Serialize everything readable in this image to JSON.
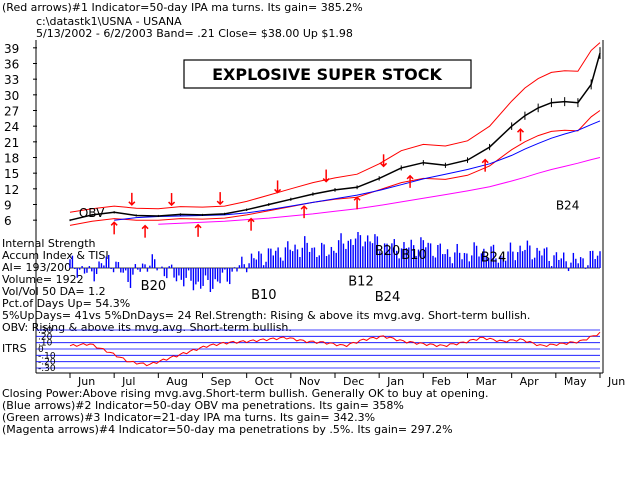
{
  "header": {
    "line1": "(Red arrows)#1 Indicator=50-day IPA ma turns. Its gain= 385.2%",
    "path": "c:\\datastk1\\USNA  -  USANA",
    "info": "5/13/2002 - 6/2/2003  Band= .21   Close= $38.00   Up $1.98"
  },
  "annotation": {
    "title": "EXPLOSIVE SUPER STOCK"
  },
  "left_panel": {
    "lines": [
      "Internal Strength",
      "Accum Index & TISI",
      "AI= 193/200",
      "Volume= 1922",
      "Vol/Vol 50 DA= 1.2",
      "Pct.of Days Up= 54.3%",
      "5%UpDays= 41vs 5%DnDays= 24   Rel.Strength: Rising & above its mvg.avg. Short-term bullish.",
      "OBV: Rising & above its mvg.avg. Short-term bullish."
    ],
    "itrs_label": "ITRS",
    "itrs_ticks": [
      ".30",
      ".20",
      ".10",
      "0",
      "-.10",
      "-.20",
      "-.30"
    ]
  },
  "footer": {
    "lines": [
      "Closing Power:Above rising mvg.avg.Short-term bullish. Generally OK to buy at opening.",
      "(Blue arrows)#2 Indicator=50-day OBV ma penetrations. Its gain= 358%",
      "(Green arrows)#3 Indicator=21-day IPA ma turns. Its gain= 342.3%",
      "(Magenta arrows)#4 Indicator=50-day ma penetrations by .5%. Its gain= 297.2%"
    ]
  },
  "colors": {
    "price": "#000000",
    "bands": "#ff0000",
    "ma_blue": "#0000ff",
    "ma_magenta": "#ff00ff",
    "accum": "#0000ff",
    "itrs": "#ff0000",
    "arrows": "#ff0000"
  },
  "chart_data": {
    "type": "line",
    "title": "USNA - USANA",
    "y_ticks": [
      39,
      36,
      33,
      30,
      27,
      24,
      21,
      18,
      15,
      12,
      9,
      6
    ],
    "ylim": [
      4.5,
      40.5
    ],
    "x_months": [
      "Jun",
      "Jul",
      "Aug",
      "Sep",
      "Oct",
      "Nov",
      "Dec",
      "Jan",
      "Feb",
      "Mar",
      "Apr",
      "May",
      "Jun"
    ],
    "x": [
      0,
      0.5,
      1,
      1.5,
      2,
      2.5,
      3,
      3.5,
      4,
      4.5,
      5,
      5.5,
      6,
      6.5,
      7,
      7.5,
      8,
      8.5,
      9,
      9.5,
      10,
      10.3,
      10.6,
      10.9,
      11.2,
      11.5,
      11.8,
      12
    ],
    "series": [
      {
        "values": [
          6.0,
          7.0,
          7.5,
          6.9,
          6.8,
          7.1,
          7.0,
          7.2,
          8.0,
          9.0,
          10.0,
          11.0,
          11.8,
          12.3,
          14.0,
          16.0,
          17.0,
          16.5,
          17.5,
          20.0,
          24.0,
          26.0,
          27.5,
          28.5,
          28.7,
          28.5,
          32.0,
          38.0
        ]
      },
      {
        "values": [
          7.5,
          8.2,
          8.7,
          8.3,
          8.2,
          8.6,
          8.5,
          8.7,
          9.6,
          10.8,
          12.0,
          13.2,
          14.1,
          14.8,
          16.8,
          19.3,
          20.5,
          20.2,
          21.2,
          24.0,
          28.8,
          31.3,
          33.1,
          34.3,
          34.6,
          34.5,
          38.5,
          40.0
        ]
      },
      {
        "values": [
          5.0,
          5.8,
          6.3,
          6.0,
          6.0,
          6.3,
          6.2,
          6.4,
          7.0,
          7.8,
          8.6,
          9.4,
          10.0,
          10.4,
          11.8,
          13.2,
          14.0,
          13.8,
          14.6,
          16.4,
          19.5,
          21.0,
          22.2,
          23.0,
          23.2,
          23.1,
          25.8,
          27.0
        ]
      },
      {
        "values": [
          null,
          null,
          6.0,
          6.5,
          6.7,
          6.8,
          6.9,
          7.0,
          7.4,
          8.0,
          8.7,
          9.4,
          10.1,
          10.8,
          11.7,
          12.8,
          13.9,
          14.8,
          15.7,
          16.8,
          18.4,
          19.6,
          20.7,
          21.7,
          22.5,
          23.2,
          24.3,
          25.0
        ]
      },
      {
        "values": [
          null,
          null,
          null,
          null,
          5.2,
          5.4,
          5.6,
          5.8,
          6.1,
          6.4,
          6.8,
          7.2,
          7.7,
          8.2,
          8.8,
          9.5,
          10.2,
          10.9,
          11.6,
          12.4,
          13.5,
          14.2,
          15.0,
          15.7,
          16.3,
          16.9,
          17.6,
          18.0
        ]
      }
    ],
    "accum_index": [
      2,
      -3,
      4,
      -5,
      3,
      -2,
      -6,
      -8,
      -4,
      3,
      6,
      8,
      10,
      7,
      12,
      14,
      10,
      9,
      11,
      7,
      6,
      8,
      5,
      9,
      7,
      4,
      3,
      6
    ],
    "itrs": [
      0.05,
      0.08,
      -0.05,
      -0.2,
      -0.25,
      -0.15,
      -0.05,
      0.05,
      0.1,
      0.12,
      0.15,
      0.18,
      0.12,
      0.1,
      0.05,
      0.15,
      0.2,
      0.12,
      0.08,
      0.05,
      0.1,
      0.18,
      0.12,
      0.15,
      0.05,
      0.08,
      0.12,
      0.25
    ],
    "arrows_price": [
      {
        "x": 1.0,
        "dir": "up"
      },
      {
        "x": 1.4,
        "dir": "down"
      },
      {
        "x": 1.7,
        "dir": "up"
      },
      {
        "x": 2.3,
        "dir": "down"
      },
      {
        "x": 2.9,
        "dir": "up"
      },
      {
        "x": 3.4,
        "dir": "down"
      },
      {
        "x": 4.1,
        "dir": "up"
      },
      {
        "x": 4.7,
        "dir": "down"
      },
      {
        "x": 5.3,
        "dir": "up"
      },
      {
        "x": 5.8,
        "dir": "down"
      },
      {
        "x": 6.5,
        "dir": "up"
      },
      {
        "x": 7.1,
        "dir": "down"
      },
      {
        "x": 7.7,
        "dir": "up"
      },
      {
        "x": 9.4,
        "dir": "up"
      },
      {
        "x": 10.2,
        "dir": "up"
      }
    ],
    "labels_price": [
      {
        "text": "OBV",
        "x": 0.2,
        "y": 6.6
      },
      {
        "text": "B24",
        "x": 11.0,
        "y": 8.0
      }
    ],
    "labels_accum": [
      {
        "text": "B20",
        "x": 1.6,
        "v": -10
      },
      {
        "text": "B10",
        "x": 4.1,
        "v": -14
      },
      {
        "text": "B12",
        "x": 6.3,
        "v": -8
      },
      {
        "text": "B24",
        "x": 6.9,
        "v": -15
      },
      {
        "text": "B20",
        "x": 6.9,
        "v": 6
      },
      {
        "text": "B10",
        "x": 7.5,
        "v": 4
      },
      {
        "text": "B24",
        "x": 9.3,
        "v": 3
      }
    ]
  }
}
